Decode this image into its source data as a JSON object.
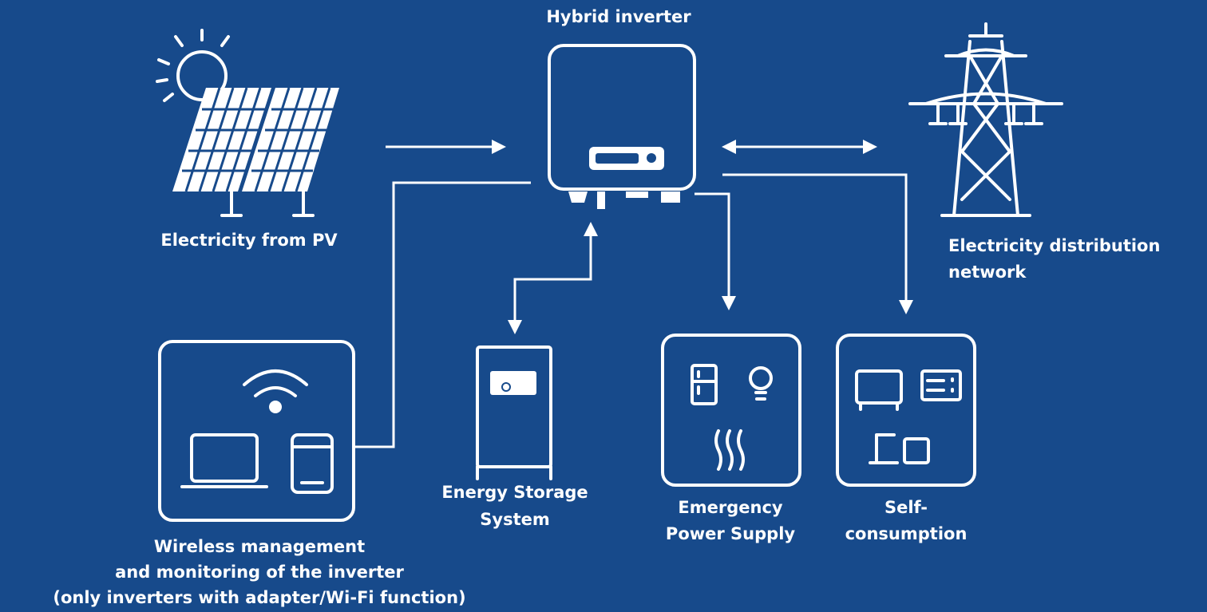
{
  "inverter": {
    "label": [
      "Hybrid inverter"
    ]
  },
  "pv": {
    "label": [
      "Electricity from PV"
    ]
  },
  "grid": {
    "label": [
      "Electricity distribution",
      "network"
    ]
  },
  "storage": {
    "label": [
      "Energy Storage",
      "System"
    ]
  },
  "emergency": {
    "label": [
      "Emergency",
      "Power Supply"
    ]
  },
  "self_consumption": {
    "label": [
      "Self-",
      "consumption"
    ]
  },
  "wireless": {
    "label": [
      "Wireless management",
      "and monitoring of the inverter",
      "(only inverters with adapter/Wi-Fi function)"
    ]
  }
}
